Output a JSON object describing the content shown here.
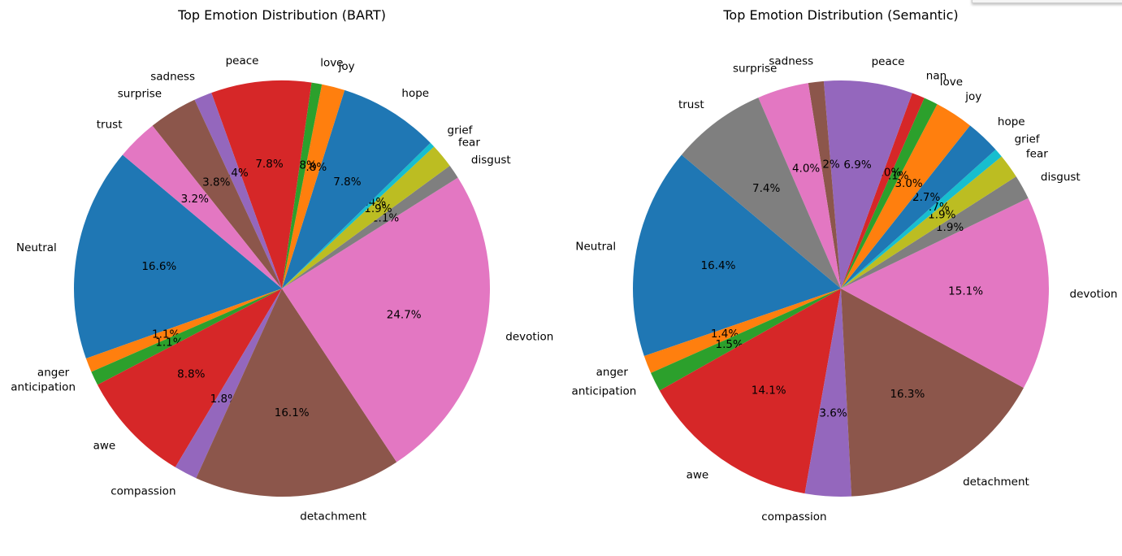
{
  "chart_data": [
    {
      "type": "pie",
      "title": "Top Emotion Distribution (BART)",
      "start_angle": 140,
      "slices": [
        {
          "label": "Neutral",
          "value": 16.6,
          "pct_label": "16.6%",
          "color": "#1f77b4"
        },
        {
          "label": "anger",
          "value": 1.1,
          "pct_label": "1.1%",
          "color": "#ff7f0e"
        },
        {
          "label": "anticipation",
          "value": 1.1,
          "pct_label": "1.1%",
          "color": "#2ca02c"
        },
        {
          "label": "awe",
          "value": 8.8,
          "pct_label": "8.8%",
          "color": "#d62728"
        },
        {
          "label": "compassion",
          "value": 1.8,
          "pct_label": "1.8%",
          "color": "#9467bd"
        },
        {
          "label": "detachment",
          "value": 16.1,
          "pct_label": "16.1%",
          "color": "#8c564b"
        },
        {
          "label": "devotion",
          "value": 24.7,
          "pct_label": "24.7%",
          "color": "#e377c2"
        },
        {
          "label": "disgust",
          "value": 1.1,
          "pct_label": "1.1%",
          "color": "#7f7f7f"
        },
        {
          "label": "fear",
          "value": 1.9,
          "pct_label": "1.9%",
          "color": "#bcbd22"
        },
        {
          "label": "grief",
          "value": 0.4,
          "pct_label": "0.4%",
          "color": "#17becf"
        },
        {
          "label": "hope",
          "value": 7.8,
          "pct_label": "7.8%",
          "color": "#1f77b4"
        },
        {
          "label": "joy",
          "value": 1.8,
          "pct_label": "1.8%",
          "color": "#ff7f0e"
        },
        {
          "label": "love",
          "value": 0.8,
          "pct_label": "0.8%",
          "color": "#2ca02c"
        },
        {
          "label": "peace",
          "value": 7.8,
          "pct_label": "7.8%",
          "color": "#d62728"
        },
        {
          "label": "sadness",
          "value": 1.4,
          "pct_label": "1.4%",
          "color": "#9467bd"
        },
        {
          "label": "surprise",
          "value": 3.8,
          "pct_label": "3.8%",
          "color": "#8c564b"
        },
        {
          "label": "trust",
          "value": 3.2,
          "pct_label": "3.2%",
          "color": "#e377c2"
        }
      ]
    },
    {
      "type": "pie",
      "title": "Top Emotion Distribution (Semantic)",
      "start_angle": 140,
      "slices": [
        {
          "label": "Neutral",
          "value": 16.4,
          "pct_label": "16.4%",
          "color": "#1f77b4"
        },
        {
          "label": "anger",
          "value": 1.4,
          "pct_label": "1.4%",
          "color": "#ff7f0e"
        },
        {
          "label": "anticipation",
          "value": 1.5,
          "pct_label": "1.5%",
          "color": "#2ca02c"
        },
        {
          "label": "awe",
          "value": 14.1,
          "pct_label": "14.1%",
          "color": "#d62728"
        },
        {
          "label": "compassion",
          "value": 3.6,
          "pct_label": "3.6%",
          "color": "#9467bd"
        },
        {
          "label": "detachment",
          "value": 16.3,
          "pct_label": "16.3%",
          "color": "#8c564b"
        },
        {
          "label": "devotion",
          "value": 15.1,
          "pct_label": "15.1%",
          "color": "#e377c2"
        },
        {
          "label": "disgust",
          "value": 1.9,
          "pct_label": "1.9%",
          "color": "#7f7f7f"
        },
        {
          "label": "fear",
          "value": 1.9,
          "pct_label": "1.9%",
          "color": "#bcbd22"
        },
        {
          "label": "grief",
          "value": 0.7,
          "pct_label": "0.7%",
          "color": "#17becf"
        },
        {
          "label": "hope",
          "value": 2.7,
          "pct_label": "2.7%",
          "color": "#1f77b4"
        },
        {
          "label": "joy",
          "value": 3.0,
          "pct_label": "3.0%",
          "color": "#ff7f0e"
        },
        {
          "label": "love",
          "value": 1.1,
          "pct_label": "1.1%",
          "color": "#2ca02c"
        },
        {
          "label": "nan",
          "value": 1.0,
          "pct_label": "1.0%",
          "color": "#d62728"
        },
        {
          "label": "peace",
          "value": 6.9,
          "pct_label": "6.9%",
          "color": "#9467bd"
        },
        {
          "label": "sadness",
          "value": 1.2,
          "pct_label": "1.2%",
          "color": "#8c564b"
        },
        {
          "label": "surprise",
          "value": 4.0,
          "pct_label": "4.0%",
          "color": "#e377c2"
        },
        {
          "label": "trust",
          "value": 7.4,
          "pct_label": "7.4%",
          "color": "#7f7f7f"
        }
      ]
    }
  ]
}
